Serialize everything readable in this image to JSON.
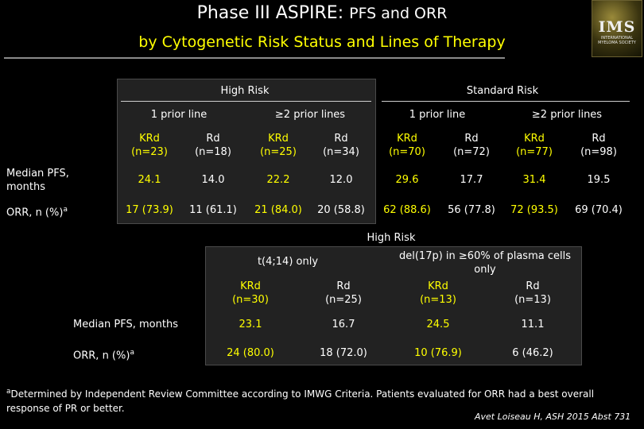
{
  "title": {
    "part1": "Phase III ASPIRE: ",
    "part2": "PFS and ORR",
    "line2": "by Cytogenetic Risk Status and Lines of Therapy"
  },
  "logo": {
    "text": "IMS",
    "subtext": "INTERNATIONAL MYELOMA SOCIETY"
  },
  "table1": {
    "groups": [
      "High Risk",
      "Standard Risk"
    ],
    "subgroups": [
      "1 prior line",
      "≥2 prior lines",
      "1 prior line",
      "≥2 prior lines"
    ],
    "columns": [
      {
        "arm": "KRd",
        "n": "(n=23)"
      },
      {
        "arm": "Rd",
        "n": "(n=18)"
      },
      {
        "arm": "KRd",
        "n": "(n=25)"
      },
      {
        "arm": "Rd",
        "n": "(n=34)"
      },
      {
        "arm": "KRd",
        "n": "(n=70)"
      },
      {
        "arm": "Rd",
        "n": "(n=72)"
      },
      {
        "arm": "KRd",
        "n": "(n=77)"
      },
      {
        "arm": "Rd",
        "n": "(n=98)"
      }
    ],
    "rows": [
      {
        "label_line1": "Median PFS,",
        "label_line2": "months",
        "values": [
          "24.1",
          "14.0",
          "22.2",
          "12.0",
          "29.6",
          "17.7",
          "31.4",
          "19.5"
        ]
      },
      {
        "label": "ORR, n (%)",
        "sup": "a",
        "values": [
          "17 (73.9)",
          "11 (61.1)",
          "21 (84.0)",
          "20 (58.8)",
          "62 (88.6)",
          "56 (77.8)",
          "72 (93.5)",
          "69 (70.4)"
        ]
      }
    ]
  },
  "table2": {
    "group": "High Risk",
    "subgroups": [
      "t(4;14) only",
      "del(17p) in ≥60% of plasma cells only"
    ],
    "subgroup2_line1": "del(17p) in ≥60% of plasma cells",
    "subgroup2_line2": "only",
    "columns": [
      {
        "arm": "KRd",
        "n": "(n=30)"
      },
      {
        "arm": "Rd",
        "n": "(n=25)"
      },
      {
        "arm": "KRd",
        "n": "(n=13)"
      },
      {
        "arm": "Rd",
        "n": "(n=13)"
      }
    ],
    "rows": [
      {
        "label": "Median PFS, months",
        "values": [
          "23.1",
          "16.7",
          "24.5",
          "11.1"
        ]
      },
      {
        "label": "ORR, n (%)",
        "sup": "a",
        "values": [
          "24 (80.0)",
          "18 (72.0)",
          "10 (76.9)",
          "6 (46.2)"
        ]
      }
    ]
  },
  "footnote": {
    "sup": "a",
    "text": "Determined by Independent Review Committee according to IMWG Criteria. Patients evaluated for ORR had a best overall response of PR or better."
  },
  "citation": "Avet Loiseau H, ASH 2015 Abst 731",
  "colors": {
    "background": "#000000",
    "krd": "#ffff00",
    "rd": "#ffffff",
    "title2": "#ffff00"
  }
}
